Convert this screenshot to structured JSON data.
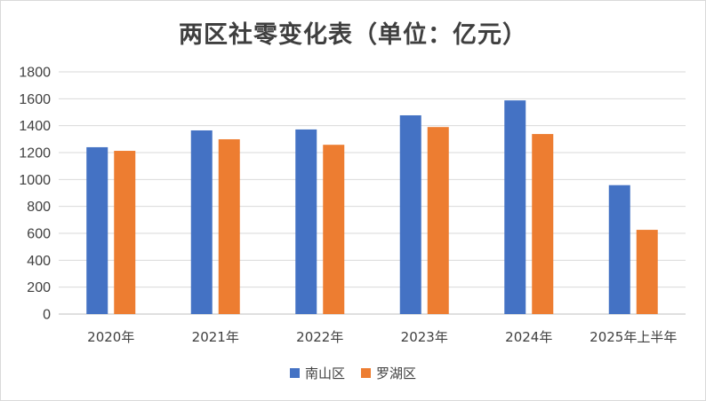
{
  "chart_data": {
    "type": "bar",
    "title": "两区社零变化表（单位：亿元）",
    "categories": [
      "2020年",
      "2021年",
      "2022年",
      "2023年",
      "2024年",
      "2025年上半年"
    ],
    "series": [
      {
        "name": "南山区",
        "color": "#4472c4",
        "values": [
          1240,
          1365,
          1372,
          1477,
          1588,
          958
        ]
      },
      {
        "name": "罗湖区",
        "color": "#ed7d31",
        "values": [
          1213,
          1299,
          1258,
          1390,
          1338,
          626
        ]
      }
    ],
    "ylim": [
      0,
      1800
    ],
    "yticks": [
      0,
      200,
      400,
      600,
      800,
      1000,
      1200,
      1400,
      1600,
      1800
    ],
    "grid": true,
    "legend": "bottom"
  }
}
